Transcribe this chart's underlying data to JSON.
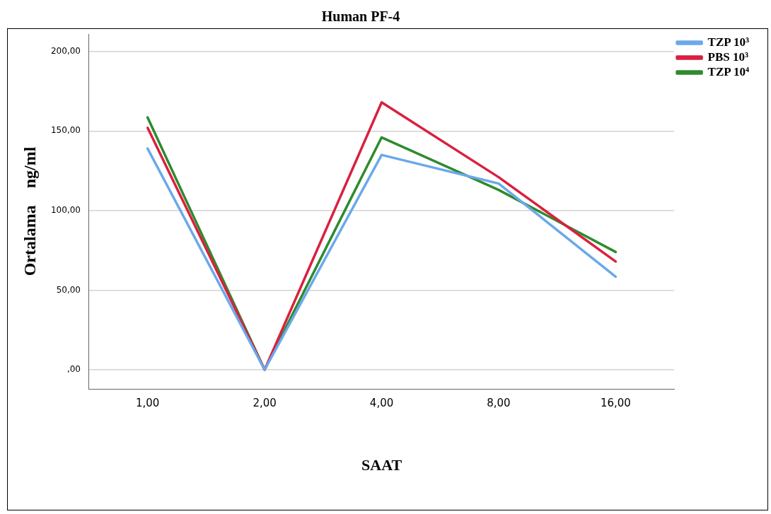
{
  "chart_data": {
    "type": "line",
    "title": "Human PF-4",
    "xlabel": "SAAT",
    "ylabel": "Ortalama    ng/ml",
    "categories": [
      "1,00",
      "2,00",
      "4,00",
      "8,00",
      "16,00"
    ],
    "series": [
      {
        "name": "TZP 10³",
        "color": "#6aa9ea",
        "values": [
          139,
          0,
          135,
          117,
          58.5
        ]
      },
      {
        "name": "PBS 10³",
        "color": "#d9203f",
        "values": [
          152,
          0,
          168,
          121,
          68
        ]
      },
      {
        "name": "TZP 10⁴",
        "color": "#2e8b2e",
        "values": [
          158.5,
          0,
          146,
          113,
          74
        ]
      }
    ],
    "ylim": [
      -12,
      211
    ],
    "yticks": [
      {
        "value": 0,
        "label": ",00"
      },
      {
        "value": 50,
        "label": "50,00"
      },
      {
        "value": 100,
        "label": "100,00"
      },
      {
        "value": 150,
        "label": "150,00"
      },
      {
        "value": 200,
        "label": "200,00"
      }
    ],
    "grid": "y",
    "legend": "top right",
    "marker": "none",
    "line_style": "solid"
  }
}
